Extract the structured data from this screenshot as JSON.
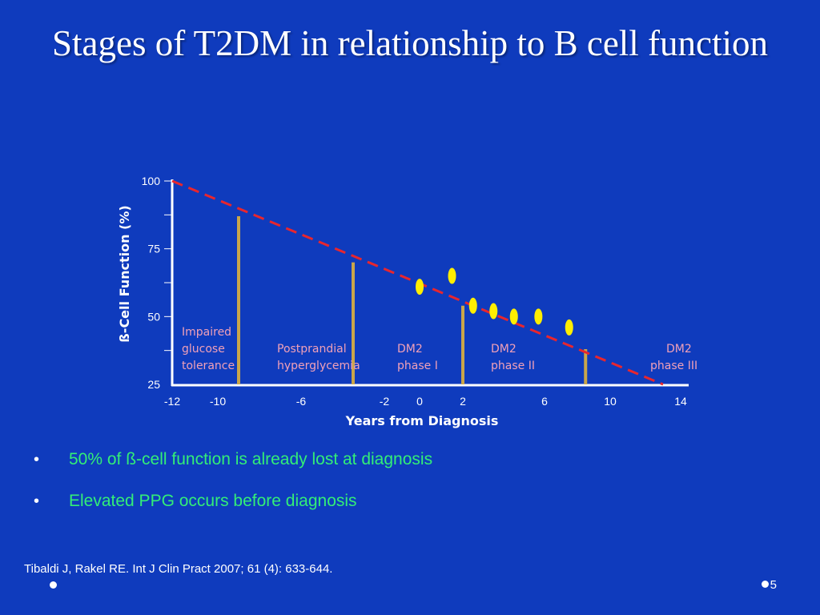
{
  "slide": {
    "title": "Stages of T2DM in relationship to B cell function",
    "bullets": [
      "50% of ß-cell function is already lost at diagnosis",
      "Elevated PPG occurs before diagnosis"
    ],
    "citation": "Tibaldi J, Rakel RE. Int J Clin Pract 2007; 61 (4): 633-644.",
    "page_number": "5"
  },
  "colors": {
    "background": "#0f3bbd",
    "axis": "#ffffff",
    "trend_line": "#e8262e",
    "stage_bars": "#c9a64a",
    "markers": "#ffee00",
    "stage_labels": "#f0a0b8",
    "bullet_text": "#33ee77"
  },
  "chart_data": {
    "type": "line",
    "xlabel": "Years from Diagnosis",
    "ylabel": "ß-Cell Function (%)",
    "xticks": [
      -12,
      -10,
      -6,
      -2,
      0,
      2,
      6,
      10,
      14
    ],
    "yticks": [
      25,
      50,
      75,
      100
    ],
    "ylim": [
      25,
      100
    ],
    "series": [
      {
        "style": "dashed",
        "x": [
          -12,
          13
        ],
        "y": [
          100,
          25
        ]
      }
    ],
    "stage_dividers": [
      {
        "x": -9,
        "y": 87
      },
      {
        "x": -3.5,
        "y": 70
      },
      {
        "x": 2,
        "y": 54
      },
      {
        "x": 8.5,
        "y": 38
      }
    ],
    "markers": [
      {
        "x": 0,
        "y": 61
      },
      {
        "x": 1.5,
        "y": 65
      },
      {
        "x": 2.5,
        "y": 54
      },
      {
        "x": 3.5,
        "y": 52
      },
      {
        "x": 4.5,
        "y": 50
      },
      {
        "x": 5.7,
        "y": 50
      },
      {
        "x": 7.5,
        "y": 46
      }
    ],
    "stages": [
      {
        "label": "Impaired glucose tolerance",
        "lines": [
          "Impaired",
          "glucose",
          "tolerance"
        ]
      },
      {
        "label": "Postprandial hyperglycemia",
        "lines": [
          "Postprandial",
          "hyperglycemia"
        ]
      },
      {
        "label": "DM2 phase I",
        "lines": [
          "DM2",
          "phase I"
        ]
      },
      {
        "label": "DM2 phase II",
        "lines": [
          "DM2",
          "phase II"
        ]
      },
      {
        "label": "DM2 phase III",
        "lines": [
          "DM2",
          "phase III"
        ]
      }
    ]
  }
}
